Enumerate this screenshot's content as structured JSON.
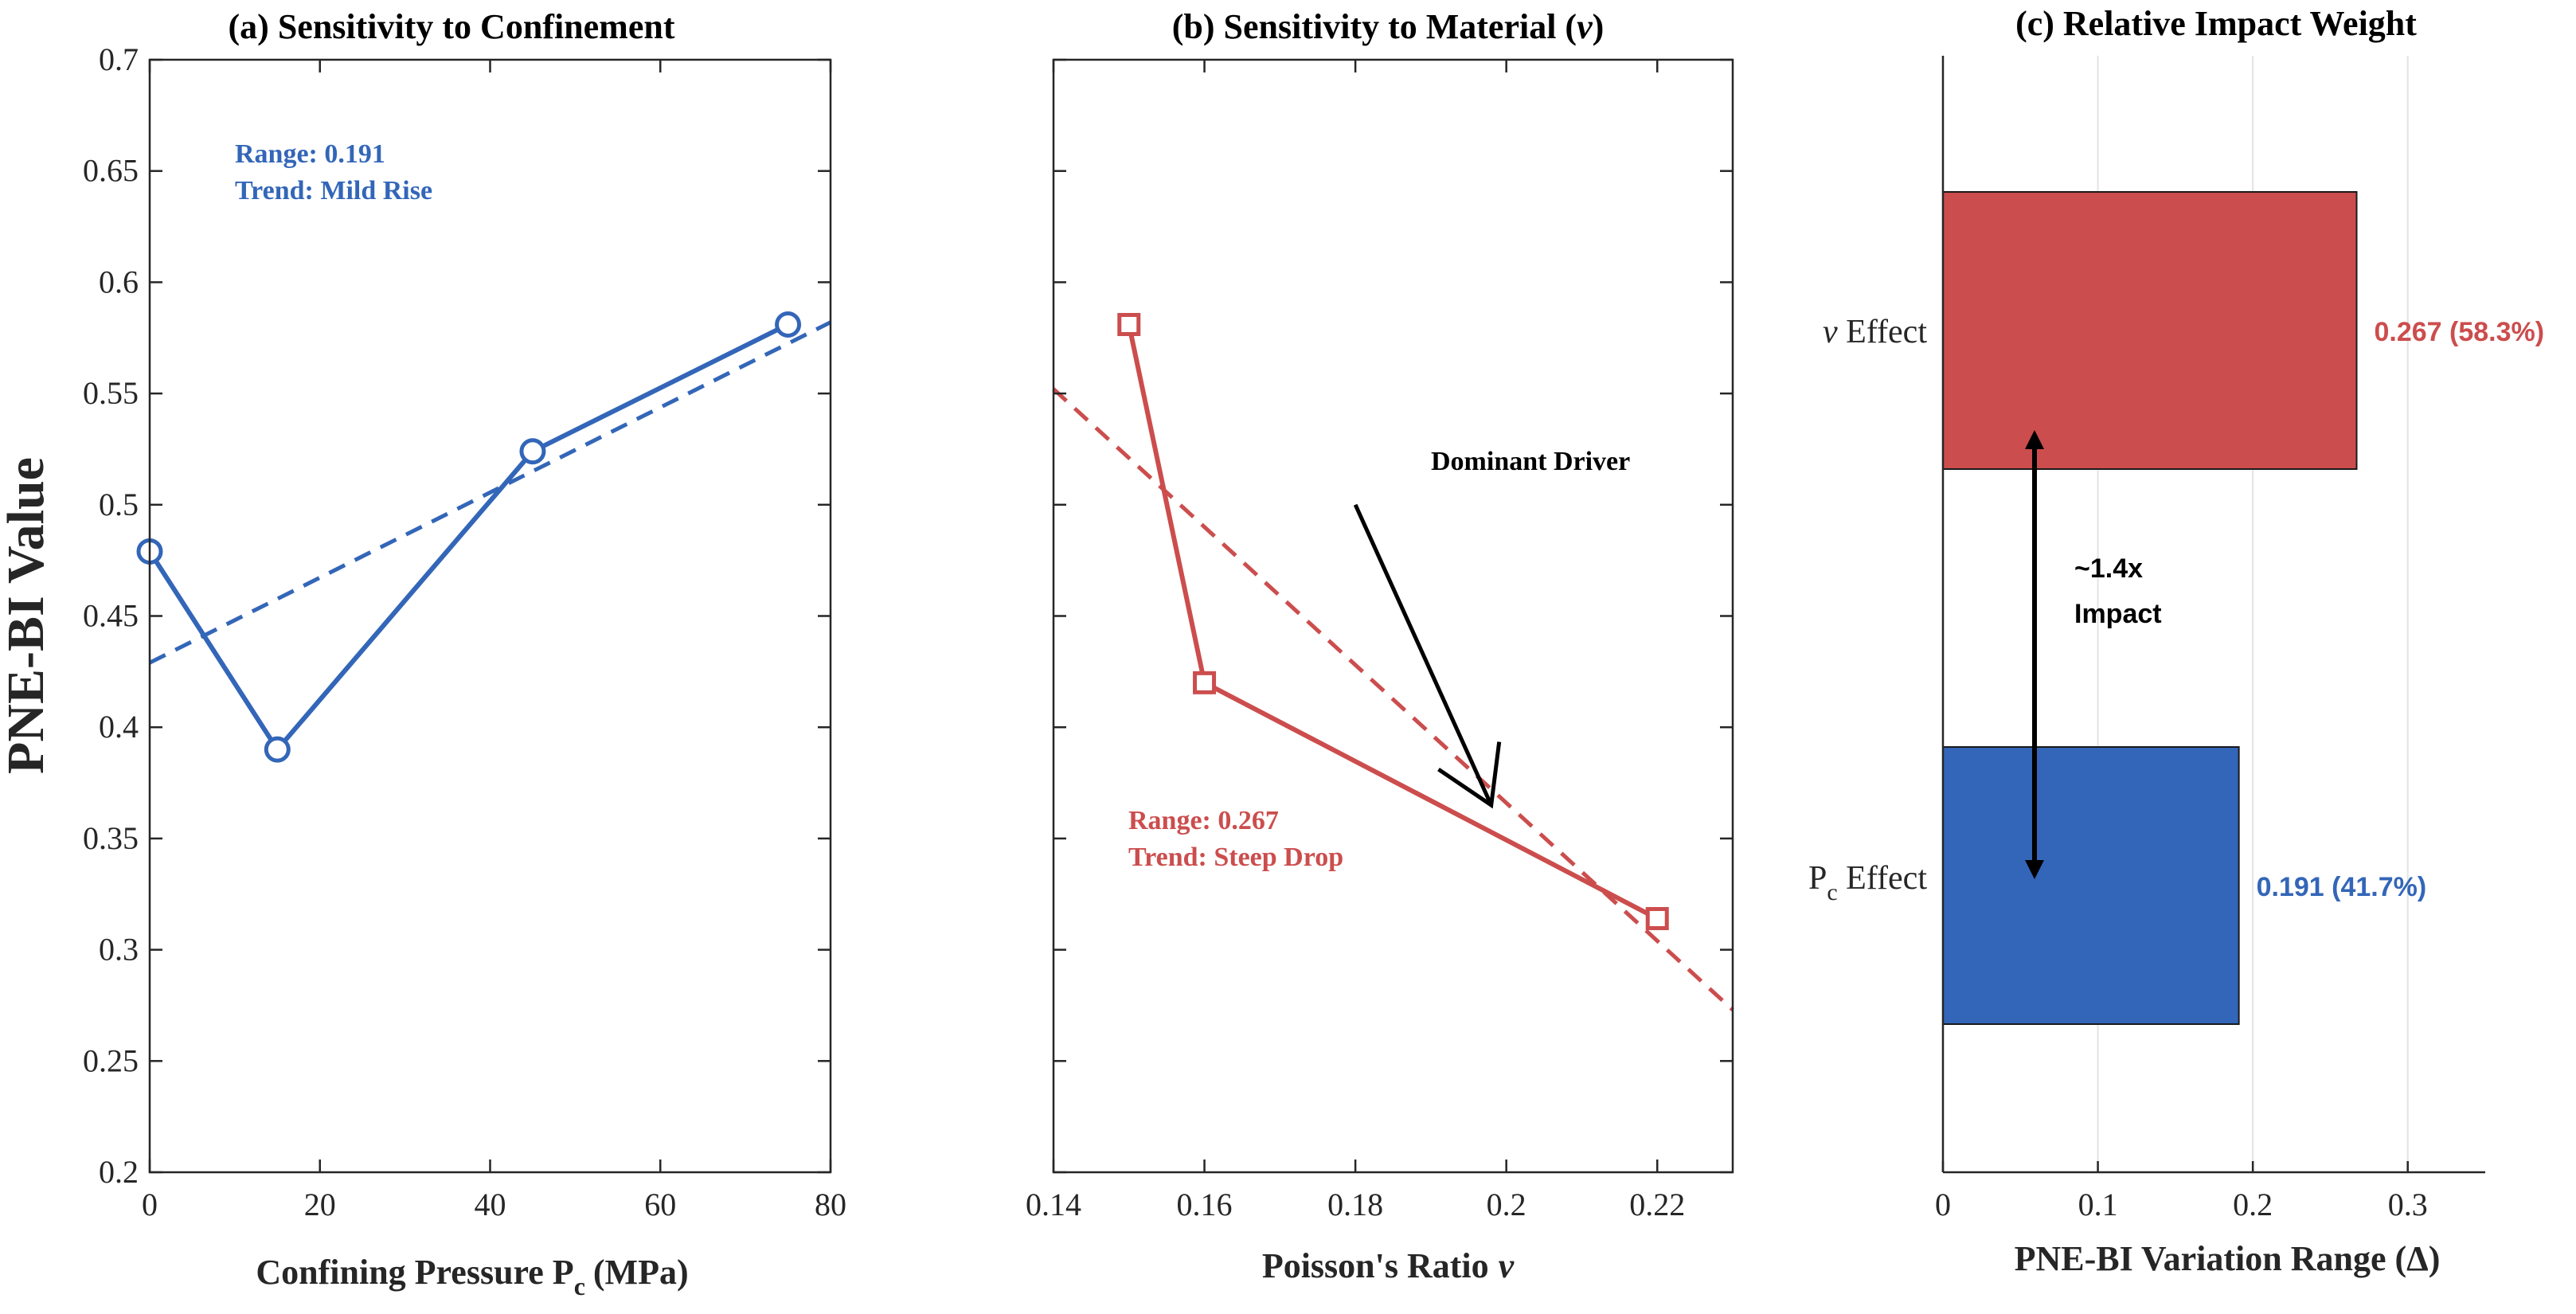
{
  "colors": {
    "blue": "#3366B8",
    "red": "#CC4D4D",
    "black": "#000000"
  },
  "chart_data": [
    {
      "type": "line",
      "title": "(a) Sensitivity to Confinement",
      "xlabel": "Confining Pressure P",
      "xlabel_sub": "c",
      "xlabel_unit": "(MPa)",
      "ylabel": "PNE-BI Value",
      "xlim": [
        0,
        80
      ],
      "ylim": [
        0.2,
        0.7
      ],
      "xticks": [
        0,
        20,
        40,
        60,
        80
      ],
      "yticks": [
        0.2,
        0.25,
        0.3,
        0.35,
        0.4,
        0.45,
        0.5,
        0.55,
        0.6,
        0.65,
        0.7
      ],
      "x": [
        0,
        15,
        45,
        75
      ],
      "y": [
        0.479,
        0.39,
        0.524,
        0.581
      ],
      "marker": "circle",
      "trend": {
        "style": "dashed",
        "x": [
          0,
          80
        ],
        "y": [
          0.429,
          0.582
        ]
      },
      "annotations": [
        "Range: 0.191",
        "Trend: Mild Rise"
      ]
    },
    {
      "type": "line",
      "title": "(b) Sensitivity to Material (",
      "title_symbol": "ν",
      "title_end": ")",
      "xlabel": "Poisson's Ratio",
      "xlabel_symbol": "ν",
      "xlim": [
        0.14,
        0.23
      ],
      "ylim": [
        0.2,
        0.7
      ],
      "xticks": [
        0.14,
        0.16,
        0.18,
        0.2,
        0.22
      ],
      "x": [
        0.15,
        0.16,
        0.22
      ],
      "y": [
        0.581,
        0.42,
        0.314
      ],
      "marker": "square",
      "trend": {
        "style": "dashed",
        "x": [
          0.14,
          0.23
        ],
        "y": [
          0.552,
          0.273
        ]
      },
      "annotations": [
        "Range: 0.267",
        "Trend: Steep Drop"
      ],
      "arrow_label": "Dominant Driver",
      "arrow": {
        "from": [
          0.18,
          0.5
        ],
        "to": [
          0.198,
          0.365
        ]
      }
    },
    {
      "type": "bar",
      "orientation": "horizontal",
      "title": "(c) Relative Impact Weight",
      "xlabel": "PNE-BI Variation Range (",
      "xlabel_symbol": "Δ",
      "xlabel_end": ")",
      "xlim": [
        0,
        0.35
      ],
      "xticks": [
        0,
        0.1,
        0.2,
        0.3
      ],
      "grid": true,
      "categories": [
        {
          "symbol": "ν",
          "sub": "",
          "label": " Effect"
        },
        {
          "symbol": "P",
          "sub": "c",
          "label": " Effect"
        }
      ],
      "values": [
        0.267,
        0.191
      ],
      "value_labels": [
        "0.267 (58.3%)",
        "0.191 (41.7%)"
      ],
      "bar_colors": [
        "#CC4D4D",
        "#3366B8"
      ],
      "compare_label": [
        "~1.4x",
        "Impact"
      ]
    }
  ]
}
